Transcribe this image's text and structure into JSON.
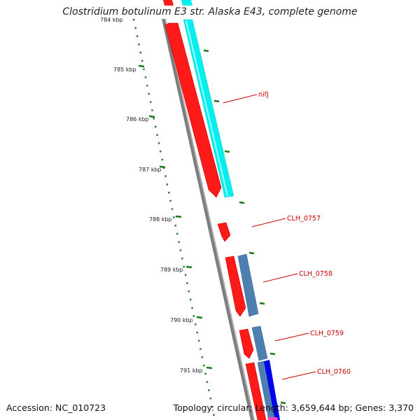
{
  "title": "Clostridium botulinum E3 str. Alaska E43, complete genome",
  "footer": {
    "accession": "Accession: NC_010723",
    "summary": "Topology: circular; Length: 3,659,644 bp; Genes: 3,370"
  },
  "ruler": {
    "unit": "kbp",
    "ticks": [
      "784 kbp",
      "785 kbp",
      "786 kbp",
      "787 kbp",
      "788 kbp",
      "789 kbp",
      "790 kbp",
      "791 kbp"
    ]
  },
  "genes": [
    {
      "label": "nifJ"
    },
    {
      "label": "CLH_0757"
    },
    {
      "label": "CLH_0758"
    },
    {
      "label": "CLH_0759"
    },
    {
      "label": "CLH_0760"
    }
  ],
  "colors": {
    "backbone": "#8a8a8a",
    "cds": "#ff0000",
    "cog_cyan": "#00ffff",
    "cog_steelblue": "#4f7fb0",
    "cog_blue": "#0000ee",
    "cog_pink": "#ff44bb",
    "tick": "#1a7a1a",
    "label_line": "#cc0000"
  }
}
